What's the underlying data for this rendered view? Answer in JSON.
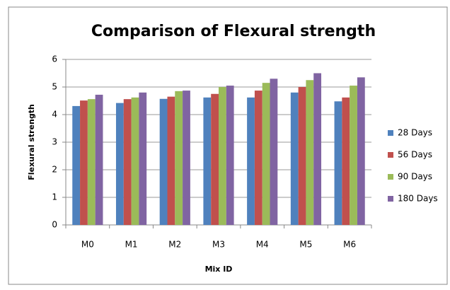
{
  "chart_data": {
    "type": "bar",
    "title": "Comparison of Flexural strength",
    "x_label": "Mix ID",
    "y_label": "Flexural strength",
    "categories": [
      "M0",
      "M1",
      "M2",
      "M3",
      "M4",
      "M5",
      "M6"
    ],
    "series": [
      {
        "name": "28 Days",
        "color": "#4f81bd",
        "values": [
          4.31,
          4.42,
          4.57,
          4.62,
          4.62,
          4.8,
          4.48
        ]
      },
      {
        "name": "56 Days",
        "color": "#c0504d",
        "values": [
          4.51,
          4.56,
          4.65,
          4.75,
          4.87,
          5.0,
          4.62
        ]
      },
      {
        "name": "90 Days",
        "color": "#9bbb59",
        "values": [
          4.56,
          4.62,
          4.85,
          5.0,
          5.15,
          5.25,
          5.05
        ]
      },
      {
        "name": "180 Days",
        "color": "#8064a2",
        "values": [
          4.72,
          4.8,
          4.87,
          5.05,
          5.3,
          5.5,
          5.35
        ]
      }
    ],
    "ylim": [
      0,
      6
    ],
    "yticks": [
      0,
      1,
      2,
      3,
      4,
      5,
      6
    ],
    "grid": true,
    "legend": "right"
  }
}
